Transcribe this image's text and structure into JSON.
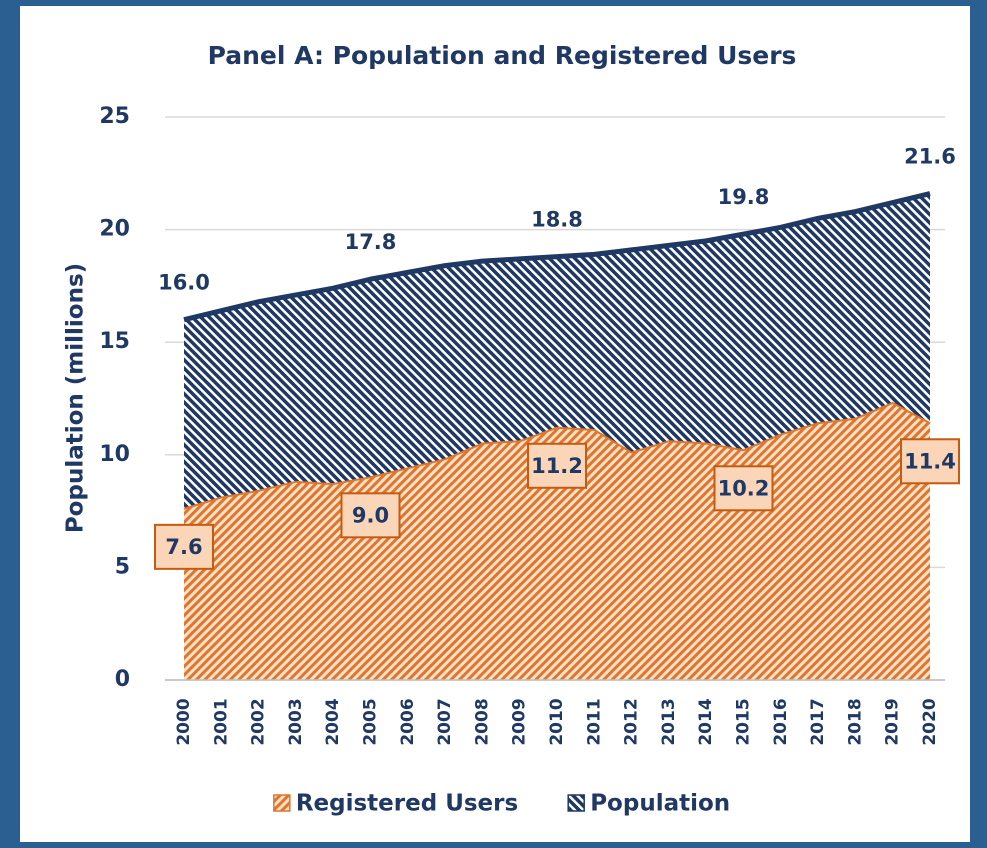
{
  "chart_data": {
    "type": "area",
    "title": "Panel A: Population and Registered Users",
    "y_label": "Population (millions)",
    "categories": [
      "2000",
      "2001",
      "2002",
      "2003",
      "2004",
      "2005",
      "2006",
      "2007",
      "2008",
      "2009",
      "2010",
      "2011",
      "2012",
      "2013",
      "2014",
      "2015",
      "2016",
      "2017",
      "2018",
      "2019",
      "2020"
    ],
    "series": [
      {
        "name": "Registered Users",
        "color": "#e0762a",
        "values": [
          7.6,
          8.1,
          8.4,
          8.8,
          8.7,
          9.0,
          9.4,
          9.8,
          10.5,
          10.6,
          11.2,
          11.1,
          10.1,
          10.6,
          10.5,
          10.2,
          10.9,
          11.4,
          11.6,
          12.3,
          11.4
        ],
        "value_labels": [
          "7.6",
          null,
          null,
          null,
          null,
          "9.0",
          null,
          null,
          null,
          null,
          "11.2",
          null,
          null,
          null,
          null,
          "10.2",
          null,
          null,
          null,
          null,
          "11.4"
        ]
      },
      {
        "name": "Population",
        "color": "#1f3864",
        "values": [
          16.0,
          16.4,
          16.8,
          17.1,
          17.4,
          17.8,
          18.1,
          18.4,
          18.6,
          18.7,
          18.8,
          18.9,
          19.1,
          19.3,
          19.5,
          19.8,
          20.1,
          20.5,
          20.8,
          21.2,
          21.6
        ],
        "value_labels": [
          "16.0",
          null,
          null,
          null,
          null,
          "17.8",
          null,
          null,
          null,
          null,
          "18.8",
          null,
          null,
          null,
          null,
          "19.8",
          null,
          null,
          null,
          null,
          "21.6"
        ]
      }
    ],
    "ylim": [
      0,
      25
    ],
    "yticks": [
      0,
      5,
      10,
      15,
      20,
      25
    ],
    "grid": true,
    "legend": "bottom"
  }
}
